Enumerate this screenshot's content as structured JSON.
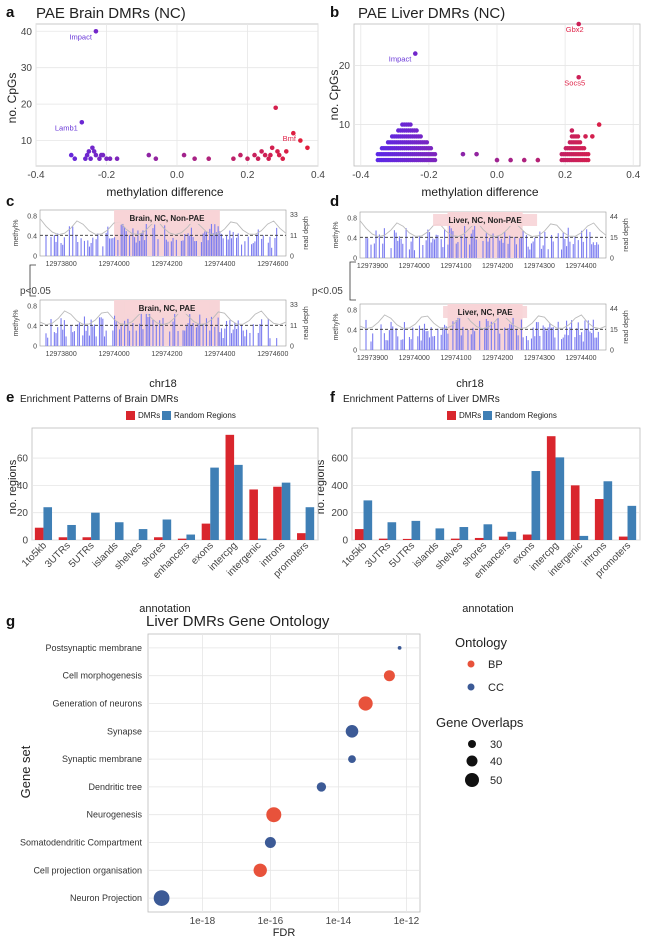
{
  "colors": {
    "dmr": "#d9262d",
    "random": "#3f7fb5",
    "bp": "#e8523b",
    "cc": "#3c5a96",
    "meth": "#7b7cf0",
    "highlight": "#f7d4d7"
  },
  "panels": {
    "a": {
      "letter": "a",
      "title": "PAE Brain DMRs (NC)",
      "xlabel": "methylation difference",
      "ylabel": "no. CpGs"
    },
    "b": {
      "letter": "b",
      "title": "PAE Liver DMRs (NC)",
      "xlabel": "methylation difference",
      "ylabel": "no. CpGs"
    },
    "c": {
      "letter": "c",
      "top_title": "Brain, NC, Non-PAE",
      "bottom_title": "Brain, NC, PAE",
      "xlabel": "chr18",
      "ylabel_left": "methyl%",
      "ylabel_right": "read depth",
      "pval": "p<0.05"
    },
    "d": {
      "letter": "d",
      "top_title": "Liver, NC, Non-PAE",
      "bottom_title": "Liver, NC, PAE",
      "xlabel": "chr18",
      "ylabel_left": "methyl%",
      "ylabel_right": "read depth",
      "pval": "p<0.05"
    },
    "e": {
      "letter": "e",
      "title": "Enrichment Patterns of Brain DMRs",
      "xlabel": "annotation",
      "ylabel": "no. regions"
    },
    "f": {
      "letter": "f",
      "title": "Enrichment Patterns of Liver DMRs",
      "xlabel": "annotation",
      "ylabel": "no. regions"
    },
    "g": {
      "letter": "g",
      "title": "Liver DMRs Gene Ontology",
      "xlabel": "FDR",
      "ylabel": "Gene set",
      "legend": {
        "ontology_title": "Ontology",
        "bp": "BP",
        "cc": "CC",
        "size_title": "Gene Overlaps",
        "sizes": [
          "30",
          "40",
          "50"
        ]
      }
    }
  },
  "chart_data": [
    {
      "id": "a",
      "type": "scatter",
      "title": "PAE Brain DMRs (NC)",
      "xlabel": "methylation difference",
      "ylabel": "no. CpGs",
      "xlim": [
        -0.4,
        0.4
      ],
      "ylim": [
        3,
        42
      ],
      "xticks": [
        "-0.4",
        "-0.2",
        "0.0",
        "0.2",
        "0.4"
      ],
      "yticks": [
        "10",
        "20",
        "30",
        "40"
      ],
      "points": [
        [
          -0.3,
          6
        ],
        [
          -0.29,
          5
        ],
        [
          -0.27,
          15
        ],
        [
          -0.26,
          5
        ],
        [
          -0.25,
          7
        ],
        [
          -0.24,
          8
        ],
        [
          -0.23,
          6
        ],
        [
          -0.22,
          5
        ],
        [
          -0.21,
          6
        ],
        [
          -0.2,
          5
        ],
        [
          -0.23,
          40
        ],
        [
          -0.255,
          6
        ],
        [
          -0.245,
          5
        ],
        [
          -0.235,
          7
        ],
        [
          -0.215,
          6
        ],
        [
          -0.19,
          5
        ],
        [
          -0.17,
          5
        ],
        [
          -0.08,
          6
        ],
        [
          -0.06,
          5
        ],
        [
          0.02,
          6
        ],
        [
          0.05,
          5
        ],
        [
          0.09,
          5
        ],
        [
          0.16,
          5
        ],
        [
          0.18,
          6
        ],
        [
          0.2,
          5
        ],
        [
          0.22,
          6
        ],
        [
          0.24,
          7
        ],
        [
          0.25,
          6
        ],
        [
          0.26,
          5
        ],
        [
          0.27,
          8
        ],
        [
          0.28,
          19
        ],
        [
          0.29,
          6
        ],
        [
          0.3,
          5
        ],
        [
          0.31,
          7
        ],
        [
          0.33,
          12
        ],
        [
          0.35,
          10
        ],
        [
          0.37,
          8
        ],
        [
          0.23,
          5
        ],
        [
          0.265,
          6
        ],
        [
          0.285,
          7
        ]
      ],
      "labels": [
        {
          "text": "Impact",
          "x": -0.23,
          "y": 40
        },
        {
          "text": "Lamb1",
          "x": -0.27,
          "y": 15
        },
        {
          "text": "Bmf",
          "x": 0.33,
          "y": 12
        }
      ]
    },
    {
      "id": "b",
      "type": "scatter",
      "title": "PAE Liver DMRs (NC)",
      "xlabel": "methylation difference",
      "ylabel": "no. CpGs",
      "xlim": [
        -0.42,
        0.42
      ],
      "ylim": [
        3,
        27
      ],
      "xticks": [
        "-0.4",
        "-0.2",
        "0.0",
        "0.2",
        "0.4"
      ],
      "yticks": [
        "10",
        "20"
      ],
      "points": [
        [
          -0.24,
          22
        ],
        [
          0.24,
          27
        ],
        [
          0.24,
          18
        ],
        [
          0.26,
          8
        ],
        [
          0.28,
          8
        ],
        [
          0.3,
          10
        ],
        [
          0.22,
          9
        ],
        [
          -0.1,
          5
        ],
        [
          -0.06,
          5
        ],
        [
          0.0,
          4
        ],
        [
          0.04,
          4
        ],
        [
          0.08,
          4
        ],
        [
          0.12,
          4
        ]
      ],
      "clusters": [
        {
          "xmin": -0.35,
          "xmax": -0.18,
          "ymin": 4,
          "ymax": 11
        },
        {
          "xmin": 0.19,
          "xmax": 0.27,
          "ymin": 4,
          "ymax": 9
        }
      ],
      "labels": [
        {
          "text": "Impact",
          "x": -0.24,
          "y": 22
        },
        {
          "text": "Gbx2",
          "x": 0.24,
          "y": 27
        },
        {
          "text": "Socs5",
          "x": 0.24,
          "y": 18
        }
      ]
    },
    {
      "id": "c",
      "type": "bar",
      "title": "Brain, NC",
      "xlabel": "chr18",
      "xticks": [
        "12973800",
        "12974000",
        "12974200",
        "12974400",
        "12974600"
      ],
      "yticks_left": [
        "0",
        "0.4",
        "0.8"
      ],
      "yticks_right": [
        "0",
        "11",
        "33"
      ],
      "highlight": [
        12974000,
        12974400
      ],
      "xlim": [
        12973720,
        12974650
      ]
    },
    {
      "id": "d",
      "type": "bar",
      "title": "Liver, NC",
      "xlabel": "chr18",
      "xticks": [
        "12973900",
        "12974000",
        "12974100",
        "12974200",
        "12974300",
        "12974400"
      ],
      "yticks_left": [
        "0",
        "0.4",
        "0.8"
      ],
      "yticks_right": [
        "0",
        "15",
        "44"
      ],
      "highlight": [
        12974080,
        12974260
      ],
      "xlim": [
        12973870,
        12974460
      ]
    },
    {
      "id": "e",
      "type": "bar",
      "title": "Enrichment Patterns of Brain DMRs",
      "xlabel": "annotation",
      "ylabel": "no. regions",
      "categories": [
        "1to5kb",
        "3UTRs",
        "5UTRs",
        "islands",
        "shelves",
        "shores",
        "enhancers",
        "exons",
        "intercpg",
        "intergenic",
        "introns",
        "promoters"
      ],
      "series": [
        {
          "name": "DMRs",
          "values": [
            9,
            2,
            2,
            0,
            0,
            2,
            1,
            12,
            77,
            37,
            39,
            5
          ]
        },
        {
          "name": "Random Regions",
          "values": [
            24,
            11,
            20,
            13,
            8,
            15,
            4,
            53,
            55,
            1,
            42,
            24
          ]
        }
      ],
      "ylim": [
        0,
        82
      ],
      "yticks": [
        "0",
        "20",
        "40",
        "60"
      ]
    },
    {
      "id": "f",
      "type": "bar",
      "title": "Enrichment Patterns of Liver DMRs",
      "xlabel": "annotation",
      "ylabel": "no. regions",
      "categories": [
        "1to5kb",
        "3UTRs",
        "5UTRs",
        "islands",
        "shelves",
        "shores",
        "enhancers",
        "exons",
        "intercpg",
        "intergenic",
        "introns",
        "promoters"
      ],
      "series": [
        {
          "name": "DMRs",
          "values": [
            80,
            10,
            8,
            0,
            10,
            15,
            25,
            40,
            760,
            400,
            300,
            25
          ]
        },
        {
          "name": "Random Regions",
          "values": [
            290,
            130,
            140,
            85,
            95,
            115,
            60,
            505,
            605,
            30,
            430,
            250
          ]
        }
      ],
      "ylim": [
        0,
        820
      ],
      "yticks": [
        "0",
        "200",
        "400",
        "600"
      ]
    },
    {
      "id": "g",
      "type": "scatter",
      "title": "Liver DMRs Gene Ontology",
      "xlabel": "FDR",
      "ylabel": "Gene set",
      "xticks": [
        "1e-18",
        "1e-16",
        "1e-14",
        "1e-12"
      ],
      "xlim_log10": [
        -19.6,
        -11.6
      ],
      "rows": [
        {
          "name": "Postsynaptic membrane",
          "log10_fdr": -12.2,
          "ontology": "CC",
          "overlaps": 22
        },
        {
          "name": "Cell morphogenesis",
          "log10_fdr": -12.5,
          "ontology": "BP",
          "overlaps": 40
        },
        {
          "name": "Generation of neurons",
          "log10_fdr": -13.2,
          "ontology": "BP",
          "overlaps": 48
        },
        {
          "name": "Synapse",
          "log10_fdr": -13.6,
          "ontology": "CC",
          "overlaps": 44
        },
        {
          "name": "Synaptic membrane",
          "log10_fdr": -13.6,
          "ontology": "CC",
          "overlaps": 32
        },
        {
          "name": "Dendritic tree",
          "log10_fdr": -14.5,
          "ontology": "CC",
          "overlaps": 36
        },
        {
          "name": "Neurogenesis",
          "log10_fdr": -15.9,
          "ontology": "BP",
          "overlaps": 50
        },
        {
          "name": "Somatodendritic Compartment",
          "log10_fdr": -16.0,
          "ontology": "CC",
          "overlaps": 40
        },
        {
          "name": "Cell projection organisation",
          "log10_fdr": -16.3,
          "ontology": "BP",
          "overlaps": 46
        },
        {
          "name": "Neuron Projection",
          "log10_fdr": -19.2,
          "ontology": "CC",
          "overlaps": 52
        }
      ]
    }
  ]
}
